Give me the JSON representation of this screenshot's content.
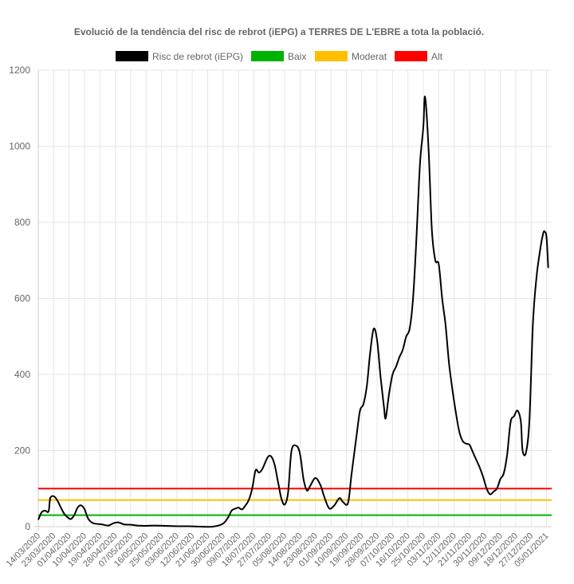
{
  "chart_data": {
    "type": "line",
    "title": "Evolució de la tendència del risc de rebrot (iEPG) a TERRES DE L'EBRE a tota la població.",
    "xlabel": "",
    "ylabel": "",
    "ylim": [
      0,
      1200
    ],
    "yticks": [
      0,
      200,
      400,
      600,
      800,
      1000,
      1200
    ],
    "grid": true,
    "legend_position": "top",
    "x_start": "14/03/2020",
    "x_end": "08/01/2021",
    "x_ticks": [
      "14/03/2020",
      "23/03/2020",
      "01/04/2020",
      "10/04/2020",
      "19/04/2020",
      "28/04/2020",
      "07/05/2020",
      "16/05/2020",
      "25/05/2020",
      "03/06/2020",
      "12/06/2020",
      "21/06/2020",
      "30/06/2020",
      "09/07/2020",
      "18/07/2020",
      "27/07/2020",
      "05/08/2020",
      "14/08/2020",
      "23/08/2020",
      "01/09/2020",
      "10/09/2020",
      "19/09/2020",
      "28/09/2020",
      "07/10/2020",
      "16/10/2020",
      "25/10/2020",
      "03/11/2020",
      "12/11/2020",
      "21/11/2020",
      "30/11/2020",
      "09/12/2020",
      "18/12/2020",
      "27/12/2020",
      "05/01/2021"
    ],
    "legend": [
      {
        "name": "Risc de rebrot (iEPG)",
        "color": "#000000"
      },
      {
        "name": "Baix",
        "color": "#00b300"
      },
      {
        "name": "Moderat",
        "color": "#ffbf00"
      },
      {
        "name": "Alt",
        "color": "#ff0000"
      }
    ],
    "thresholds": [
      {
        "name": "Baix",
        "value": 30,
        "color": "#00b300"
      },
      {
        "name": "Moderat",
        "value": 70,
        "color": "#ffbf00"
      },
      {
        "name": "Alt",
        "value": 100,
        "color": "#ff0000"
      }
    ],
    "series": [
      {
        "name": "Risc de rebrot (iEPG)",
        "color": "#000000",
        "points": [
          [
            "14/03/2020",
            18
          ],
          [
            "16/03/2020",
            38
          ],
          [
            "18/03/2020",
            42
          ],
          [
            "20/03/2020",
            40
          ],
          [
            "21/03/2020",
            75
          ],
          [
            "23/03/2020",
            80
          ],
          [
            "25/03/2020",
            70
          ],
          [
            "27/03/2020",
            52
          ],
          [
            "29/03/2020",
            35
          ],
          [
            "31/03/2020",
            25
          ],
          [
            "02/04/2020",
            20
          ],
          [
            "04/04/2020",
            30
          ],
          [
            "06/04/2020",
            50
          ],
          [
            "08/04/2020",
            56
          ],
          [
            "10/04/2020",
            46
          ],
          [
            "12/04/2020",
            22
          ],
          [
            "14/04/2020",
            12
          ],
          [
            "16/04/2020",
            8
          ],
          [
            "20/04/2020",
            6
          ],
          [
            "24/04/2020",
            3
          ],
          [
            "27/04/2020",
            9
          ],
          [
            "30/04/2020",
            11
          ],
          [
            "03/05/2020",
            6
          ],
          [
            "07/05/2020",
            5
          ],
          [
            "11/05/2020",
            3
          ],
          [
            "16/05/2020",
            2
          ],
          [
            "21/05/2020",
            3
          ],
          [
            "27/05/2020",
            2
          ],
          [
            "03/06/2020",
            1
          ],
          [
            "10/06/2020",
            1
          ],
          [
            "17/06/2020",
            0
          ],
          [
            "24/06/2020",
            0
          ],
          [
            "30/06/2020",
            8
          ],
          [
            "03/07/2020",
            25
          ],
          [
            "05/07/2020",
            42
          ],
          [
            "07/07/2020",
            47
          ],
          [
            "09/07/2020",
            50
          ],
          [
            "11/07/2020",
            45
          ],
          [
            "13/07/2020",
            55
          ],
          [
            "15/07/2020",
            70
          ],
          [
            "17/07/2020",
            100
          ],
          [
            "19/07/2020",
            148
          ],
          [
            "21/07/2020",
            142
          ],
          [
            "23/07/2020",
            152
          ],
          [
            "26/07/2020",
            182
          ],
          [
            "28/07/2020",
            185
          ],
          [
            "30/07/2020",
            165
          ],
          [
            "01/08/2020",
            120
          ],
          [
            "03/08/2020",
            75
          ],
          [
            "05/08/2020",
            58
          ],
          [
            "07/08/2020",
            90
          ],
          [
            "09/08/2020",
            200
          ],
          [
            "12/08/2020",
            212
          ],
          [
            "14/08/2020",
            190
          ],
          [
            "16/08/2020",
            125
          ],
          [
            "18/08/2020",
            95
          ],
          [
            "20/08/2020",
            108
          ],
          [
            "23/08/2020",
            128
          ],
          [
            "26/08/2020",
            108
          ],
          [
            "28/08/2020",
            80
          ],
          [
            "31/08/2020",
            48
          ],
          [
            "03/09/2020",
            56
          ],
          [
            "06/09/2020",
            75
          ],
          [
            "08/09/2020",
            65
          ],
          [
            "11/09/2020",
            62
          ],
          [
            "13/09/2020",
            135
          ],
          [
            "16/09/2020",
            240
          ],
          [
            "18/09/2020",
            305
          ],
          [
            "20/09/2020",
            322
          ],
          [
            "22/09/2020",
            370
          ],
          [
            "24/09/2020",
            460
          ],
          [
            "26/09/2020",
            520
          ],
          [
            "28/09/2020",
            490
          ],
          [
            "30/09/2020",
            395
          ],
          [
            "02/10/2020",
            315
          ],
          [
            "03/10/2020",
            285
          ],
          [
            "05/10/2020",
            350
          ],
          [
            "07/10/2020",
            400
          ],
          [
            "09/10/2020",
            420
          ],
          [
            "11/10/2020",
            445
          ],
          [
            "13/10/2020",
            465
          ],
          [
            "15/10/2020",
            500
          ],
          [
            "17/10/2020",
            520
          ],
          [
            "19/10/2020",
            600
          ],
          [
            "21/10/2020",
            760
          ],
          [
            "23/10/2020",
            950
          ],
          [
            "25/10/2020",
            1050
          ],
          [
            "26/10/2020",
            1130
          ],
          [
            "28/10/2020",
            1000
          ],
          [
            "30/10/2020",
            780
          ],
          [
            "01/11/2020",
            700
          ],
          [
            "03/11/2020",
            690
          ],
          [
            "05/11/2020",
            600
          ],
          [
            "07/11/2020",
            530
          ],
          [
            "09/11/2020",
            430
          ],
          [
            "11/11/2020",
            360
          ],
          [
            "13/11/2020",
            300
          ],
          [
            "15/11/2020",
            250
          ],
          [
            "17/11/2020",
            225
          ],
          [
            "19/11/2020",
            218
          ],
          [
            "21/11/2020",
            215
          ],
          [
            "23/11/2020",
            195
          ],
          [
            "25/11/2020",
            175
          ],
          [
            "27/11/2020",
            155
          ],
          [
            "29/11/2020",
            130
          ],
          [
            "01/12/2020",
            100
          ],
          [
            "03/12/2020",
            85
          ],
          [
            "05/12/2020",
            92
          ],
          [
            "07/12/2020",
            100
          ],
          [
            "09/12/2020",
            125
          ],
          [
            "11/12/2020",
            140
          ],
          [
            "13/12/2020",
            190
          ],
          [
            "15/12/2020",
            275
          ],
          [
            "17/12/2020",
            290
          ],
          [
            "19/12/2020",
            305
          ],
          [
            "21/12/2020",
            275
          ],
          [
            "22/12/2020",
            200
          ],
          [
            "24/12/2020",
            195
          ],
          [
            "26/12/2020",
            280
          ],
          [
            "28/12/2020",
            530
          ],
          [
            "30/12/2020",
            650
          ],
          [
            "01/01/2021",
            720
          ],
          [
            "03/01/2021",
            770
          ],
          [
            "04/01/2021",
            775
          ],
          [
            "05/01/2021",
            760
          ],
          [
            "06/01/2021",
            680
          ]
        ]
      }
    ]
  }
}
